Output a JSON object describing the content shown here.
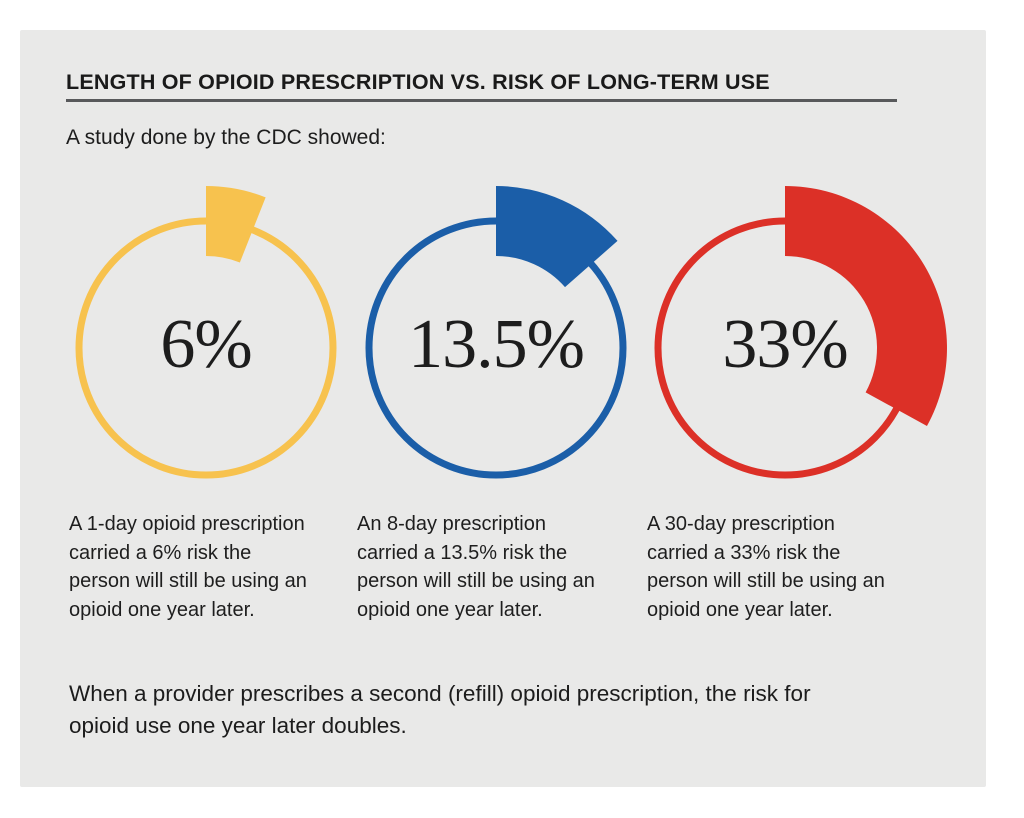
{
  "colors": {
    "page_background": "#ffffff",
    "panel_background": "#e9e9e8",
    "rule": "#58595b",
    "text": "#1d1d1d"
  },
  "header": {
    "title": "LENGTH OF OPIOID PRESCRIPTION VS. RISK OF LONG-TERM USE",
    "subtitle": "A study done by the CDC showed:"
  },
  "chart_data": {
    "type": "pie",
    "subtype": "donut-gauge-trio",
    "title": "LENGTH OF OPIOID PRESCRIPTION VS. RISK OF LONG-TERM USE",
    "subtitle": "A study done by the CDC showed:",
    "source": "CDC study (as stated in subtitle)",
    "range": [
      0,
      100
    ],
    "unit": "%",
    "categories": [
      "1-day prescription",
      "8-day prescription",
      "30-day prescription"
    ],
    "values": [
      6,
      13.5,
      33
    ],
    "series": [
      {
        "name": "1-day opioid prescription",
        "value": 6,
        "label": "6%",
        "color": "#F7C24E",
        "caption": "A 1-day opioid prescription\ncarried a 6% risk the\nperson will still be using an\nopioid one year later."
      },
      {
        "name": "8-day prescription",
        "value": 13.5,
        "label": "13.5%",
        "color": "#1B5EA8",
        "caption": "An 8-day prescription\ncarried a 13.5% risk the\nperson will still be using an\nopioid one year later."
      },
      {
        "name": "30-day prescription",
        "value": 33,
        "label": "33%",
        "color": "#DC3027",
        "caption": "A 30-day prescription\ncarried a 33% risk the\nperson will still be using an\nopioid one year later."
      }
    ],
    "annotation": "When a provider prescribes a second (refill) opioid prescription, the risk for\nopioid use one year later doubles."
  },
  "footer": {
    "note": "When a provider prescribes a second (refill) opioid prescription, the risk for\nopioid use one year later doubles."
  }
}
